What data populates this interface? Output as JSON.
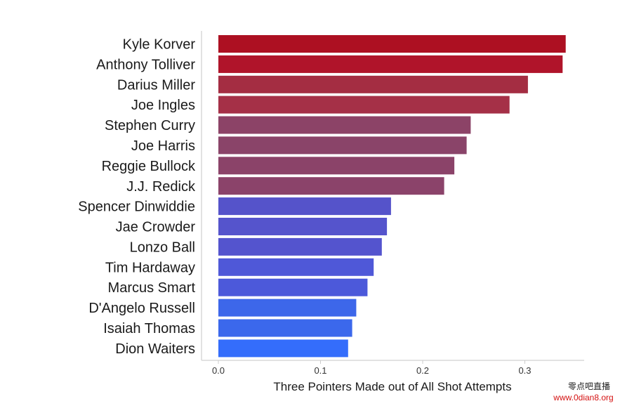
{
  "chart_data": {
    "type": "bar",
    "orientation": "horizontal",
    "categories": [
      "Kyle Korver",
      "Anthony Tolliver",
      "Darius Miller",
      "Joe Ingles",
      "Stephen Curry",
      "Joe Harris",
      "Reggie Bullock",
      "J.J. Redick",
      "Spencer Dinwiddie",
      "Jae Crowder",
      "Lonzo Ball",
      "Tim Hardaway",
      "Marcus Smart",
      "D'Angelo Russell",
      "Isaiah Thomas",
      "Dion Waiters"
    ],
    "values": [
      0.34,
      0.337,
      0.303,
      0.285,
      0.247,
      0.243,
      0.231,
      0.221,
      0.169,
      0.165,
      0.16,
      0.152,
      0.146,
      0.135,
      0.131,
      0.127
    ],
    "colors": [
      "#ad1022",
      "#b0142a",
      "#a42d42",
      "#a53047",
      "#8c4367",
      "#8a4469",
      "#8b4369",
      "#8b436a",
      "#5553ca",
      "#5554cc",
      "#5454ce",
      "#4f58d8",
      "#4c59da",
      "#3d67ea",
      "#3b68ec",
      "#346dfb"
    ],
    "xlabel": "Three Pointers Made out of All Shot Attempts",
    "ylabel": "",
    "xticks": [
      0.0,
      0.1,
      0.2,
      0.3
    ],
    "xtick_labels": [
      "0.0",
      "0.1",
      "0.2",
      "0.3"
    ],
    "xlim": [
      0,
      0.36
    ],
    "grid": false
  },
  "watermark": {
    "line1": "零点吧直播",
    "line2": "www.0dian8.org"
  }
}
